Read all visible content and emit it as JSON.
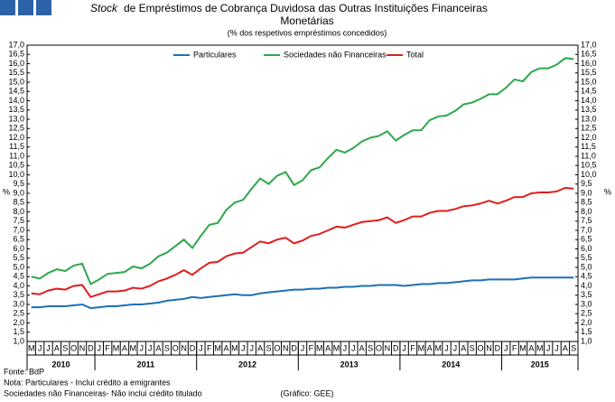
{
  "chart_data": {
    "type": "line",
    "title_italic": "Stock",
    "title": "de Empréstimos de Cobrança Duvidosa das Outras Instituições Financeiras",
    "title_line2": "Monetárias",
    "subtitle": "(% dos respetivos empréstimos concedidos)",
    "y_label": "%",
    "y2_label": "%",
    "categories": [
      "M",
      "J",
      "J",
      "A",
      "S",
      "O",
      "N",
      "D",
      "J",
      "F",
      "M",
      "A",
      "M",
      "J",
      "J",
      "A",
      "S",
      "O",
      "N",
      "D",
      "J",
      "F",
      "M",
      "A",
      "M",
      "J",
      "J",
      "A",
      "S",
      "O",
      "N",
      "D",
      "J",
      "F",
      "M",
      "A",
      "M",
      "J",
      "J",
      "A",
      "S",
      "O",
      "N",
      "D",
      "J",
      "F",
      "M",
      "A",
      "M",
      "J",
      "J",
      "A",
      "S",
      "O",
      "N",
      "D",
      "J",
      "F",
      "M",
      "A",
      "M",
      "J",
      "J",
      "A",
      "S"
    ],
    "years": [
      "2010",
      "2011",
      "2012",
      "2013",
      "2014",
      "2015"
    ],
    "series": [
      {
        "name": "Particulares",
        "color": "#1f6fb5",
        "values": [
          2.85,
          2.85,
          2.9,
          2.9,
          2.9,
          2.95,
          3.0,
          2.8,
          2.85,
          2.9,
          2.9,
          2.95,
          3.0,
          3.0,
          3.05,
          3.1,
          3.2,
          3.25,
          3.3,
          3.4,
          3.35,
          3.4,
          3.45,
          3.5,
          3.55,
          3.5,
          3.5,
          3.6,
          3.65,
          3.7,
          3.75,
          3.8,
          3.8,
          3.85,
          3.85,
          3.9,
          3.9,
          3.95,
          3.95,
          4.0,
          4.0,
          4.05,
          4.05,
          4.05,
          4.0,
          4.05,
          4.1,
          4.1,
          4.15,
          4.15,
          4.2,
          4.25,
          4.3,
          4.3,
          4.35,
          4.35,
          4.35,
          4.35,
          4.4,
          4.45,
          4.45,
          4.45,
          4.45,
          4.45,
          4.45
        ]
      },
      {
        "name": "Sociedades não Financeiras",
        "color": "#2ca84a",
        "values": [
          4.5,
          4.4,
          4.7,
          4.9,
          4.8,
          5.1,
          5.2,
          4.1,
          4.35,
          4.65,
          4.7,
          4.75,
          5.05,
          4.95,
          5.2,
          5.6,
          5.8,
          6.15,
          6.5,
          6.05,
          6.7,
          7.3,
          7.4,
          8.1,
          8.5,
          8.65,
          9.25,
          9.8,
          9.5,
          9.95,
          10.15,
          9.45,
          9.7,
          10.25,
          10.4,
          10.9,
          11.35,
          11.2,
          11.45,
          11.8,
          12.0,
          12.1,
          12.35,
          11.85,
          12.15,
          12.4,
          12.4,
          12.95,
          13.15,
          13.2,
          13.45,
          13.8,
          13.9,
          14.1,
          14.35,
          14.35,
          14.7,
          15.15,
          15.05,
          15.55,
          15.75,
          15.75,
          15.95,
          16.3,
          16.25
        ]
      },
      {
        "name": "Total",
        "color": "#e01e1e",
        "values": [
          3.6,
          3.55,
          3.75,
          3.85,
          3.8,
          4.0,
          4.05,
          3.4,
          3.55,
          3.7,
          3.7,
          3.75,
          3.9,
          3.85,
          4.0,
          4.25,
          4.4,
          4.6,
          4.85,
          4.6,
          4.95,
          5.25,
          5.3,
          5.6,
          5.75,
          5.8,
          6.1,
          6.4,
          6.3,
          6.5,
          6.6,
          6.3,
          6.45,
          6.7,
          6.8,
          7.0,
          7.2,
          7.15,
          7.3,
          7.45,
          7.5,
          7.55,
          7.7,
          7.4,
          7.55,
          7.75,
          7.75,
          7.95,
          8.05,
          8.05,
          8.15,
          8.3,
          8.35,
          8.45,
          8.6,
          8.45,
          8.6,
          8.8,
          8.8,
          9.0,
          9.05,
          9.05,
          9.1,
          9.3,
          9.25
        ]
      }
    ],
    "ylim": [
      1,
      17
    ],
    "yticks": [
      {
        "value": 1,
        "label": "1,0"
      },
      {
        "value": 1.5,
        "label": "1,5"
      },
      {
        "value": 2,
        "label": "2,0"
      },
      {
        "value": 2.5,
        "label": "2,5"
      },
      {
        "value": 3,
        "label": "3,0"
      },
      {
        "value": 3.5,
        "label": "3,5"
      },
      {
        "value": 4,
        "label": "4,0"
      },
      {
        "value": 4.5,
        "label": "4,5"
      },
      {
        "value": 5,
        "label": "5,0"
      },
      {
        "value": 5.5,
        "label": "5,5"
      },
      {
        "value": 6,
        "label": "6,0"
      },
      {
        "value": 6.5,
        "label": "6,5"
      },
      {
        "value": 7,
        "label": "7,0"
      },
      {
        "value": 7.5,
        "label": "7,5"
      },
      {
        "value": 8,
        "label": "8,0"
      },
      {
        "value": 8.5,
        "label": "8,5"
      },
      {
        "value": 9,
        "label": "9,0"
      },
      {
        "value": 9.5,
        "label": "9,5"
      },
      {
        "value": 10,
        "label": "10,0"
      },
      {
        "value": 10.5,
        "label": "10,5"
      },
      {
        "value": 11,
        "label": "11,0"
      },
      {
        "value": 11.5,
        "label": "11,5"
      },
      {
        "value": 12,
        "label": "12,0"
      },
      {
        "value": 12.5,
        "label": "12,5"
      },
      {
        "value": 13,
        "label": "13,0"
      },
      {
        "value": 13.5,
        "label": "13,5"
      },
      {
        "value": 14,
        "label": "14,0"
      },
      {
        "value": 14.5,
        "label": "14,5"
      },
      {
        "value": 15,
        "label": "15,0"
      },
      {
        "value": 15.5,
        "label": "15,5"
      },
      {
        "value": 16,
        "label": "16,0"
      },
      {
        "value": 16.5,
        "label": "16,5"
      },
      {
        "value": 17,
        "label": "17,0"
      }
    ],
    "grid": false,
    "legend": "top",
    "footnotes": [
      "Fonte: BdP",
      "Nota: Particulares - Inclui crédito a emigrantes",
      "Sociedades não Financeiras- Não inclui crédito titulado"
    ],
    "credit": "(Gráfico: GEE)"
  }
}
